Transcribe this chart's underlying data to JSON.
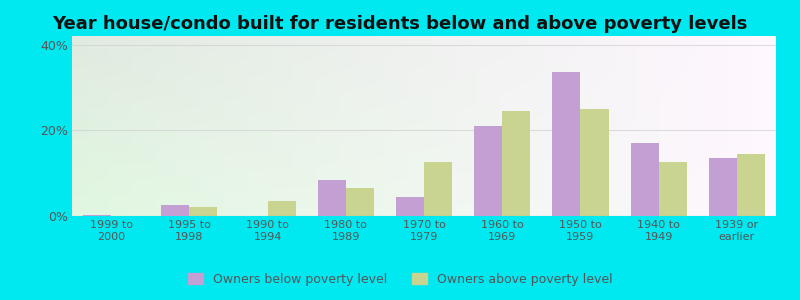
{
  "title": "Year house/condo built for residents below and above poverty levels",
  "categories": [
    "1999 to\n2000",
    "1995 to\n1998",
    "1990 to\n1994",
    "1980 to\n1989",
    "1970 to\n1979",
    "1960 to\n1969",
    "1950 to\n1959",
    "1940 to\n1949",
    "1939 or\nearlier"
  ],
  "below_poverty": [
    0.3,
    2.5,
    0.0,
    8.5,
    4.5,
    21.0,
    33.5,
    17.0,
    13.5
  ],
  "above_poverty": [
    0.0,
    2.2,
    3.5,
    6.5,
    12.5,
    24.5,
    25.0,
    12.5,
    14.5
  ],
  "below_color": "#c49fd4",
  "above_color": "#c8d490",
  "ylim": [
    0,
    42
  ],
  "yticks": [
    0,
    20,
    40
  ],
  "ytick_labels": [
    "0%",
    "20%",
    "40%"
  ],
  "outer_color": "#00e8f0",
  "legend_below": "Owners below poverty level",
  "legend_above": "Owners above poverty level",
  "title_fontsize": 13,
  "bar_width": 0.36,
  "gridcolor": "#cccccc",
  "tick_color": "#555555",
  "grid_alpha": 0.6
}
